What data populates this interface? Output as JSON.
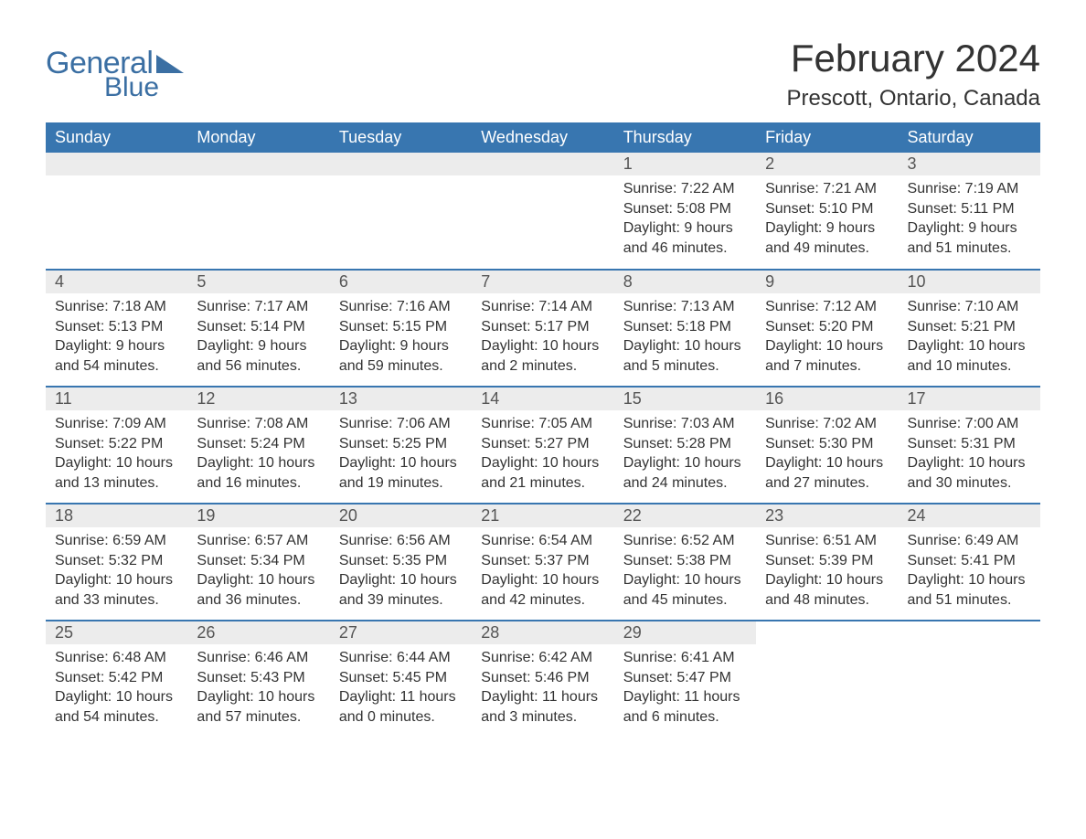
{
  "logo": {
    "text1": "General",
    "text2": "Blue",
    "tri_color": "#3b6fa3"
  },
  "title": "February 2024",
  "location": "Prescott, Ontario, Canada",
  "colors": {
    "header_bg": "#3876b0",
    "header_fg": "#ffffff",
    "daynum_bg": "#ececec",
    "row_border": "#3876b0",
    "text": "#333333",
    "logo": "#3b6fa3",
    "background": "#ffffff"
  },
  "weekdays": [
    "Sunday",
    "Monday",
    "Tuesday",
    "Wednesday",
    "Thursday",
    "Friday",
    "Saturday"
  ],
  "weeks": [
    [
      null,
      null,
      null,
      null,
      {
        "d": "1",
        "sr": "Sunrise: 7:22 AM",
        "ss": "Sunset: 5:08 PM",
        "dl": "Daylight: 9 hours and 46 minutes."
      },
      {
        "d": "2",
        "sr": "Sunrise: 7:21 AM",
        "ss": "Sunset: 5:10 PM",
        "dl": "Daylight: 9 hours and 49 minutes."
      },
      {
        "d": "3",
        "sr": "Sunrise: 7:19 AM",
        "ss": "Sunset: 5:11 PM",
        "dl": "Daylight: 9 hours and 51 minutes."
      }
    ],
    [
      {
        "d": "4",
        "sr": "Sunrise: 7:18 AM",
        "ss": "Sunset: 5:13 PM",
        "dl": "Daylight: 9 hours and 54 minutes."
      },
      {
        "d": "5",
        "sr": "Sunrise: 7:17 AM",
        "ss": "Sunset: 5:14 PM",
        "dl": "Daylight: 9 hours and 56 minutes."
      },
      {
        "d": "6",
        "sr": "Sunrise: 7:16 AM",
        "ss": "Sunset: 5:15 PM",
        "dl": "Daylight: 9 hours and 59 minutes."
      },
      {
        "d": "7",
        "sr": "Sunrise: 7:14 AM",
        "ss": "Sunset: 5:17 PM",
        "dl": "Daylight: 10 hours and 2 minutes."
      },
      {
        "d": "8",
        "sr": "Sunrise: 7:13 AM",
        "ss": "Sunset: 5:18 PM",
        "dl": "Daylight: 10 hours and 5 minutes."
      },
      {
        "d": "9",
        "sr": "Sunrise: 7:12 AM",
        "ss": "Sunset: 5:20 PM",
        "dl": "Daylight: 10 hours and 7 minutes."
      },
      {
        "d": "10",
        "sr": "Sunrise: 7:10 AM",
        "ss": "Sunset: 5:21 PM",
        "dl": "Daylight: 10 hours and 10 minutes."
      }
    ],
    [
      {
        "d": "11",
        "sr": "Sunrise: 7:09 AM",
        "ss": "Sunset: 5:22 PM",
        "dl": "Daylight: 10 hours and 13 minutes."
      },
      {
        "d": "12",
        "sr": "Sunrise: 7:08 AM",
        "ss": "Sunset: 5:24 PM",
        "dl": "Daylight: 10 hours and 16 minutes."
      },
      {
        "d": "13",
        "sr": "Sunrise: 7:06 AM",
        "ss": "Sunset: 5:25 PM",
        "dl": "Daylight: 10 hours and 19 minutes."
      },
      {
        "d": "14",
        "sr": "Sunrise: 7:05 AM",
        "ss": "Sunset: 5:27 PM",
        "dl": "Daylight: 10 hours and 21 minutes."
      },
      {
        "d": "15",
        "sr": "Sunrise: 7:03 AM",
        "ss": "Sunset: 5:28 PM",
        "dl": "Daylight: 10 hours and 24 minutes."
      },
      {
        "d": "16",
        "sr": "Sunrise: 7:02 AM",
        "ss": "Sunset: 5:30 PM",
        "dl": "Daylight: 10 hours and 27 minutes."
      },
      {
        "d": "17",
        "sr": "Sunrise: 7:00 AM",
        "ss": "Sunset: 5:31 PM",
        "dl": "Daylight: 10 hours and 30 minutes."
      }
    ],
    [
      {
        "d": "18",
        "sr": "Sunrise: 6:59 AM",
        "ss": "Sunset: 5:32 PM",
        "dl": "Daylight: 10 hours and 33 minutes."
      },
      {
        "d": "19",
        "sr": "Sunrise: 6:57 AM",
        "ss": "Sunset: 5:34 PM",
        "dl": "Daylight: 10 hours and 36 minutes."
      },
      {
        "d": "20",
        "sr": "Sunrise: 6:56 AM",
        "ss": "Sunset: 5:35 PM",
        "dl": "Daylight: 10 hours and 39 minutes."
      },
      {
        "d": "21",
        "sr": "Sunrise: 6:54 AM",
        "ss": "Sunset: 5:37 PM",
        "dl": "Daylight: 10 hours and 42 minutes."
      },
      {
        "d": "22",
        "sr": "Sunrise: 6:52 AM",
        "ss": "Sunset: 5:38 PM",
        "dl": "Daylight: 10 hours and 45 minutes."
      },
      {
        "d": "23",
        "sr": "Sunrise: 6:51 AM",
        "ss": "Sunset: 5:39 PM",
        "dl": "Daylight: 10 hours and 48 minutes."
      },
      {
        "d": "24",
        "sr": "Sunrise: 6:49 AM",
        "ss": "Sunset: 5:41 PM",
        "dl": "Daylight: 10 hours and 51 minutes."
      }
    ],
    [
      {
        "d": "25",
        "sr": "Sunrise: 6:48 AM",
        "ss": "Sunset: 5:42 PM",
        "dl": "Daylight: 10 hours and 54 minutes."
      },
      {
        "d": "26",
        "sr": "Sunrise: 6:46 AM",
        "ss": "Sunset: 5:43 PM",
        "dl": "Daylight: 10 hours and 57 minutes."
      },
      {
        "d": "27",
        "sr": "Sunrise: 6:44 AM",
        "ss": "Sunset: 5:45 PM",
        "dl": "Daylight: 11 hours and 0 minutes."
      },
      {
        "d": "28",
        "sr": "Sunrise: 6:42 AM",
        "ss": "Sunset: 5:46 PM",
        "dl": "Daylight: 11 hours and 3 minutes."
      },
      {
        "d": "29",
        "sr": "Sunrise: 6:41 AM",
        "ss": "Sunset: 5:47 PM",
        "dl": "Daylight: 11 hours and 6 minutes."
      },
      null,
      null
    ]
  ]
}
